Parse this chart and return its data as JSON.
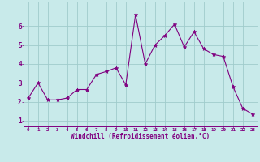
{
  "x": [
    0,
    1,
    2,
    3,
    4,
    5,
    6,
    7,
    8,
    9,
    10,
    11,
    12,
    13,
    14,
    15,
    16,
    17,
    18,
    19,
    20,
    21,
    22,
    23
  ],
  "y": [
    2.2,
    3.0,
    2.1,
    2.1,
    2.2,
    2.65,
    2.65,
    3.45,
    3.6,
    3.8,
    2.9,
    6.6,
    4.0,
    5.0,
    5.5,
    6.1,
    4.9,
    5.7,
    4.8,
    4.5,
    4.4,
    2.8,
    1.65,
    1.35
  ],
  "line_color": "#800080",
  "bg_color": "#c8eaea",
  "grid_color": "#a0cccc",
  "xlabel": "Windchill (Refroidissement éolien,°C)",
  "xlabel_color": "#800080",
  "ylim": [
    0.7,
    7.3
  ],
  "xlim": [
    -0.5,
    23.5
  ],
  "yticks": [
    1,
    2,
    3,
    4,
    5,
    6
  ],
  "xticks": [
    0,
    1,
    2,
    3,
    4,
    5,
    6,
    7,
    8,
    9,
    10,
    11,
    12,
    13,
    14,
    15,
    16,
    17,
    18,
    19,
    20,
    21,
    22,
    23
  ],
  "tick_color": "#800080"
}
